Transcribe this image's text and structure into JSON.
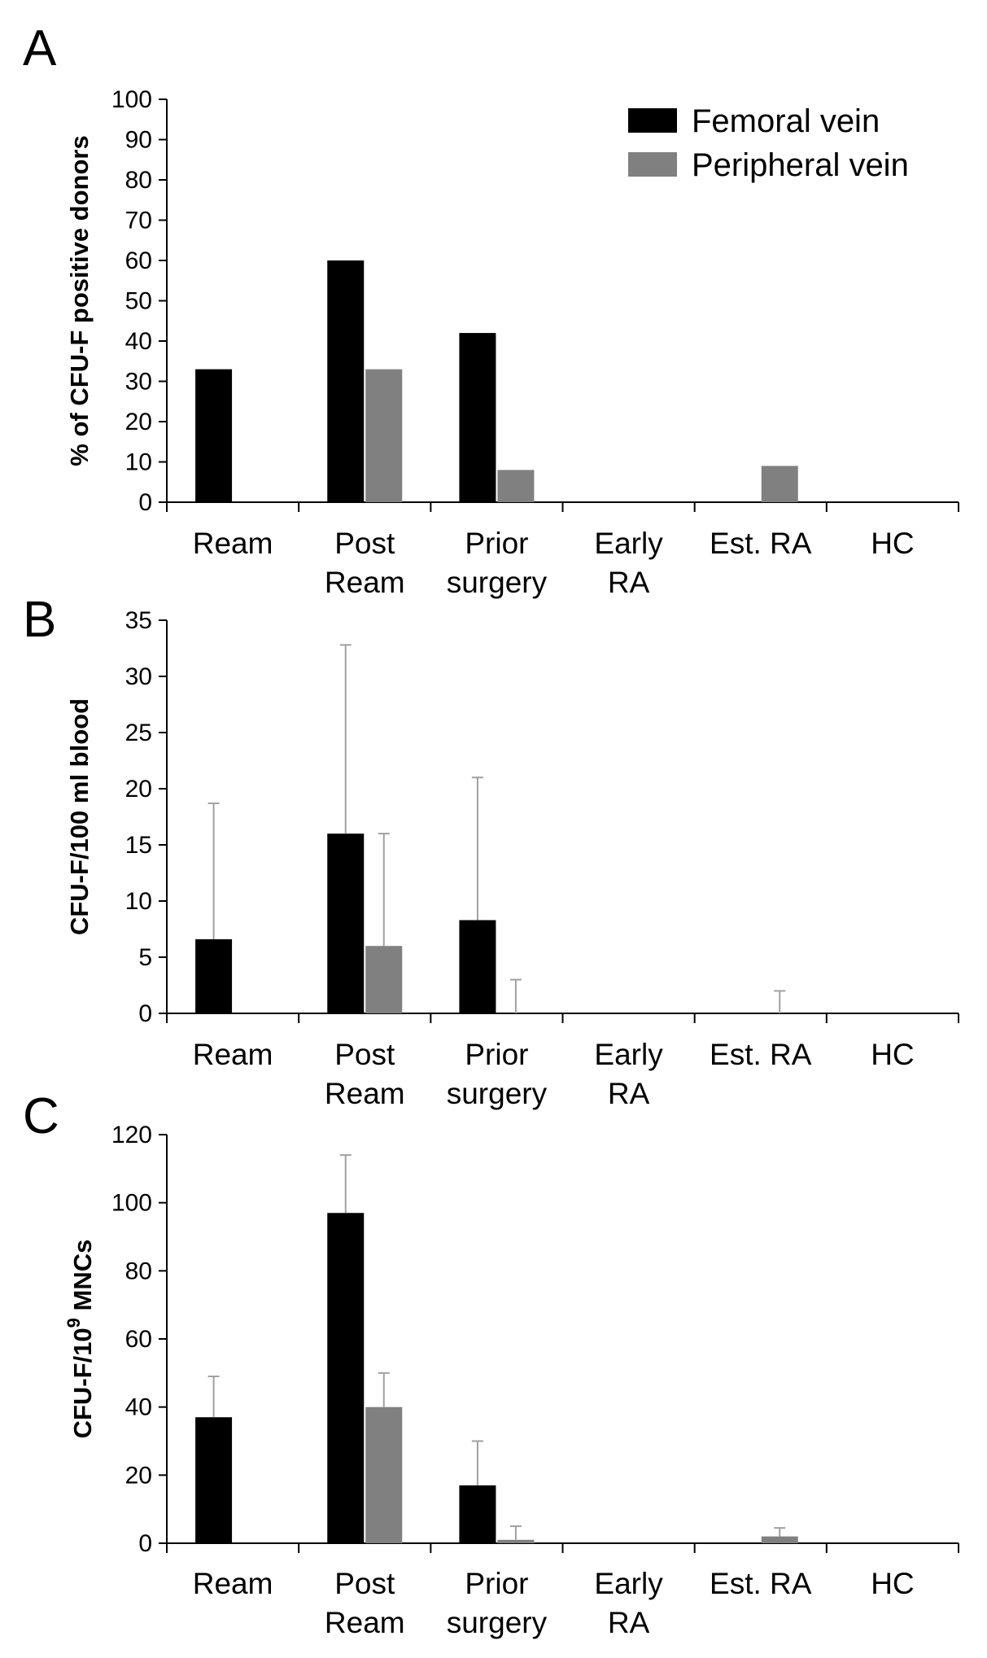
{
  "colors": {
    "femoral": "#000000",
    "peripheral": "#808080",
    "axis": "#000000",
    "error_bar": "#a0a0a0"
  },
  "legend": {
    "placement": "top-right",
    "entries": [
      {
        "label": "Femoral vein",
        "color": "#000000"
      },
      {
        "label": "Peripheral vein",
        "color": "#808080"
      }
    ]
  },
  "chart_data": [
    {
      "panel": "A",
      "type": "bar",
      "categories": [
        [
          "Ream"
        ],
        [
          "Post",
          "Ream"
        ],
        [
          "Prior",
          "surgery"
        ],
        [
          "Early",
          "RA"
        ],
        [
          "Est. RA"
        ],
        [
          "HC"
        ]
      ],
      "ylabel": "% of CFU-F positive donors",
      "ylim": [
        0,
        100
      ],
      "yticks": [
        0,
        10,
        20,
        30,
        40,
        50,
        60,
        70,
        80,
        90,
        100
      ],
      "grid": false,
      "series": [
        {
          "name": "Femoral vein",
          "values": [
            33,
            60,
            42,
            null,
            null,
            null
          ]
        },
        {
          "name": "Peripheral vein",
          "values": [
            null,
            33,
            8,
            null,
            9,
            null
          ]
        }
      ]
    },
    {
      "panel": "B",
      "type": "bar",
      "categories": [
        [
          "Ream"
        ],
        [
          "Post",
          "Ream"
        ],
        [
          "Prior",
          "surgery"
        ],
        [
          "Early",
          "RA"
        ],
        [
          "Est. RA"
        ],
        [
          "HC"
        ]
      ],
      "ylabel": "CFU-F/100 ml blood",
      "ylim": [
        0,
        35
      ],
      "yticks": [
        0,
        5,
        10,
        15,
        20,
        25,
        30,
        35
      ],
      "grid": false,
      "series": [
        {
          "name": "Femoral vein",
          "values": [
            6.6,
            16,
            8.3,
            null,
            null,
            null
          ],
          "errors": [
            12.1,
            16.8,
            12.7,
            null,
            null,
            null
          ]
        },
        {
          "name": "Peripheral vein",
          "values": [
            null,
            6,
            0,
            null,
            0,
            null
          ],
          "errors": [
            null,
            10,
            3,
            null,
            2,
            null
          ]
        }
      ]
    },
    {
      "panel": "C",
      "type": "bar",
      "categories": [
        [
          "Ream"
        ],
        [
          "Post",
          "Ream"
        ],
        [
          "Prior",
          "surgery"
        ],
        [
          "Early",
          "RA"
        ],
        [
          "Est. RA"
        ],
        [
          "HC"
        ]
      ],
      "ylabel_prefix": "CFU-F/10",
      "ylabel_sup": "9",
      "ylabel_suffix": " MNCs",
      "ylim": [
        0,
        120
      ],
      "yticks": [
        0,
        20,
        40,
        60,
        80,
        100,
        120
      ],
      "grid": false,
      "series": [
        {
          "name": "Femoral vein",
          "values": [
            37,
            97,
            17,
            null,
            null,
            null
          ],
          "errors": [
            12,
            17,
            13,
            null,
            null,
            null
          ]
        },
        {
          "name": "Peripheral vein",
          "values": [
            null,
            40,
            1,
            null,
            2,
            null
          ],
          "errors": [
            null,
            10,
            4,
            null,
            2.5,
            null
          ]
        }
      ]
    }
  ]
}
